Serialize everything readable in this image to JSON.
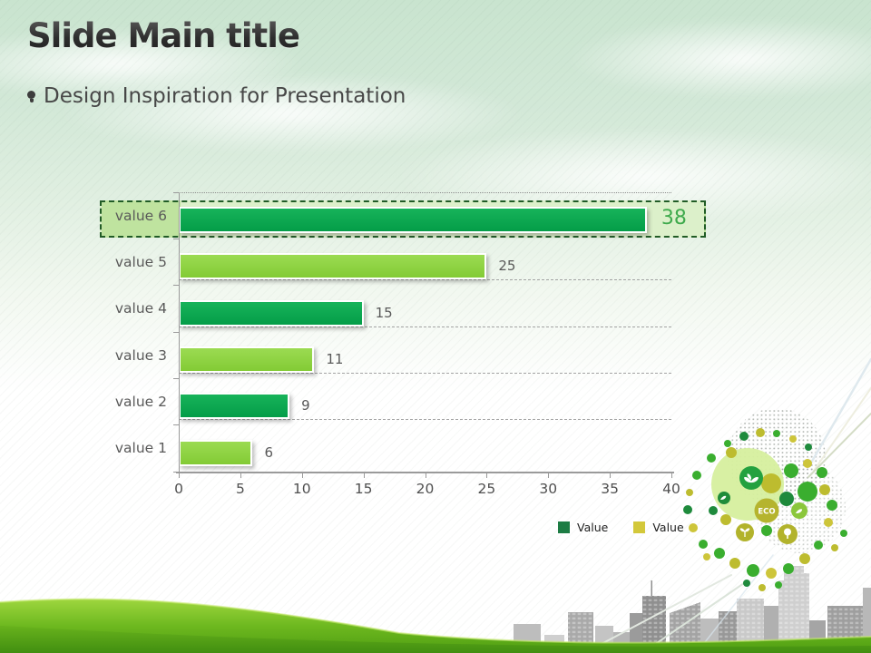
{
  "slide": {
    "title": "Slide Main title",
    "subtitle": "Design Inspiration for Presentation"
  },
  "chart_data": {
    "type": "bar",
    "orientation": "horizontal",
    "categories": [
      "value 6",
      "value 5",
      "value 4",
      "value 3",
      "value 2",
      "value 1"
    ],
    "values": [
      38,
      25,
      15,
      11,
      9,
      6
    ],
    "xlim": [
      0,
      40
    ],
    "x_ticks": [
      "0",
      "5",
      "10",
      "15",
      "20",
      "25",
      "30",
      "35",
      "40"
    ],
    "row_series": [
      "dark",
      "light",
      "dark",
      "light",
      "dark",
      "light"
    ],
    "series_colors": {
      "dark": "#0aa84f",
      "light": "#8fd341"
    },
    "grid": "dashed horizontal row lines",
    "legend_position": "bottom-right",
    "highlighted_category": "value 6",
    "highlighted_value": 38,
    "highlight_value_color": "#3faa4c",
    "legend": {
      "items": [
        {
          "label": "Value",
          "color": "#1d7c44"
        },
        {
          "label": "Value",
          "color": "#d3c83a"
        }
      ]
    }
  },
  "decor": {
    "eco_badge": "ECO"
  },
  "colors": {
    "sky_top": "#c9e4cf",
    "title_text": "#2e2e2e",
    "subtitle_text": "#474747",
    "axis": "#9a9a9a",
    "category_label": "#595959",
    "grass_light": "#8ccb2b",
    "grass_dark": "#4f9e15",
    "highlight_fill": "#dcf0ca",
    "highlight_border": "#215c26"
  }
}
